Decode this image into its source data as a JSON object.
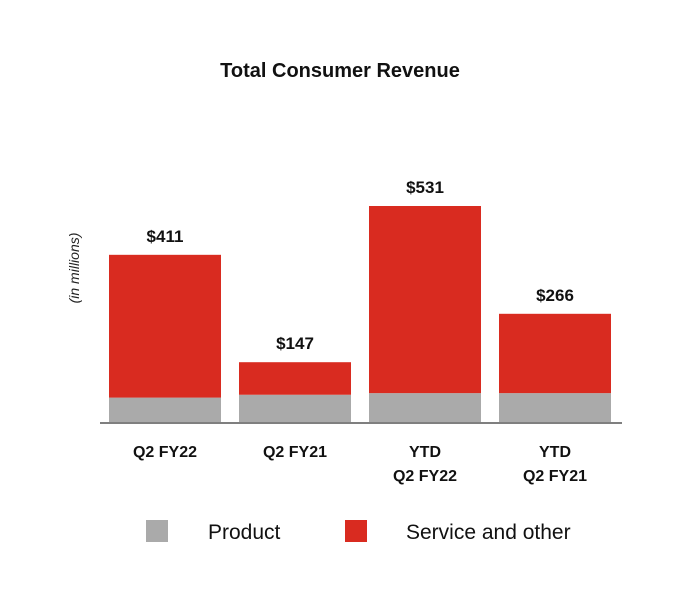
{
  "chart_data": {
    "type": "bar",
    "stacked": true,
    "title": "Total Consumer Revenue",
    "ylabel": "(in millions)",
    "xlabel": "",
    "categories": [
      [
        "Q2 FY22"
      ],
      [
        "Q2 FY21"
      ],
      [
        "YTD",
        "Q2 FY22"
      ],
      [
        "YTD",
        "Q2 FY21"
      ]
    ],
    "totals_labels": [
      "$411",
      "$147",
      "$531",
      "$266"
    ],
    "totals": [
      411,
      147,
      531,
      266
    ],
    "series": [
      {
        "name": "Product",
        "color": "#aaaaaa",
        "values": [
          60,
          67,
          71,
          71
        ]
      },
      {
        "name": "Service and other",
        "color": "#d92b20",
        "values": [
          351,
          80,
          460,
          195
        ]
      }
    ],
    "ylim": [
      0,
      531
    ],
    "grid": false,
    "legend": "bottom"
  }
}
